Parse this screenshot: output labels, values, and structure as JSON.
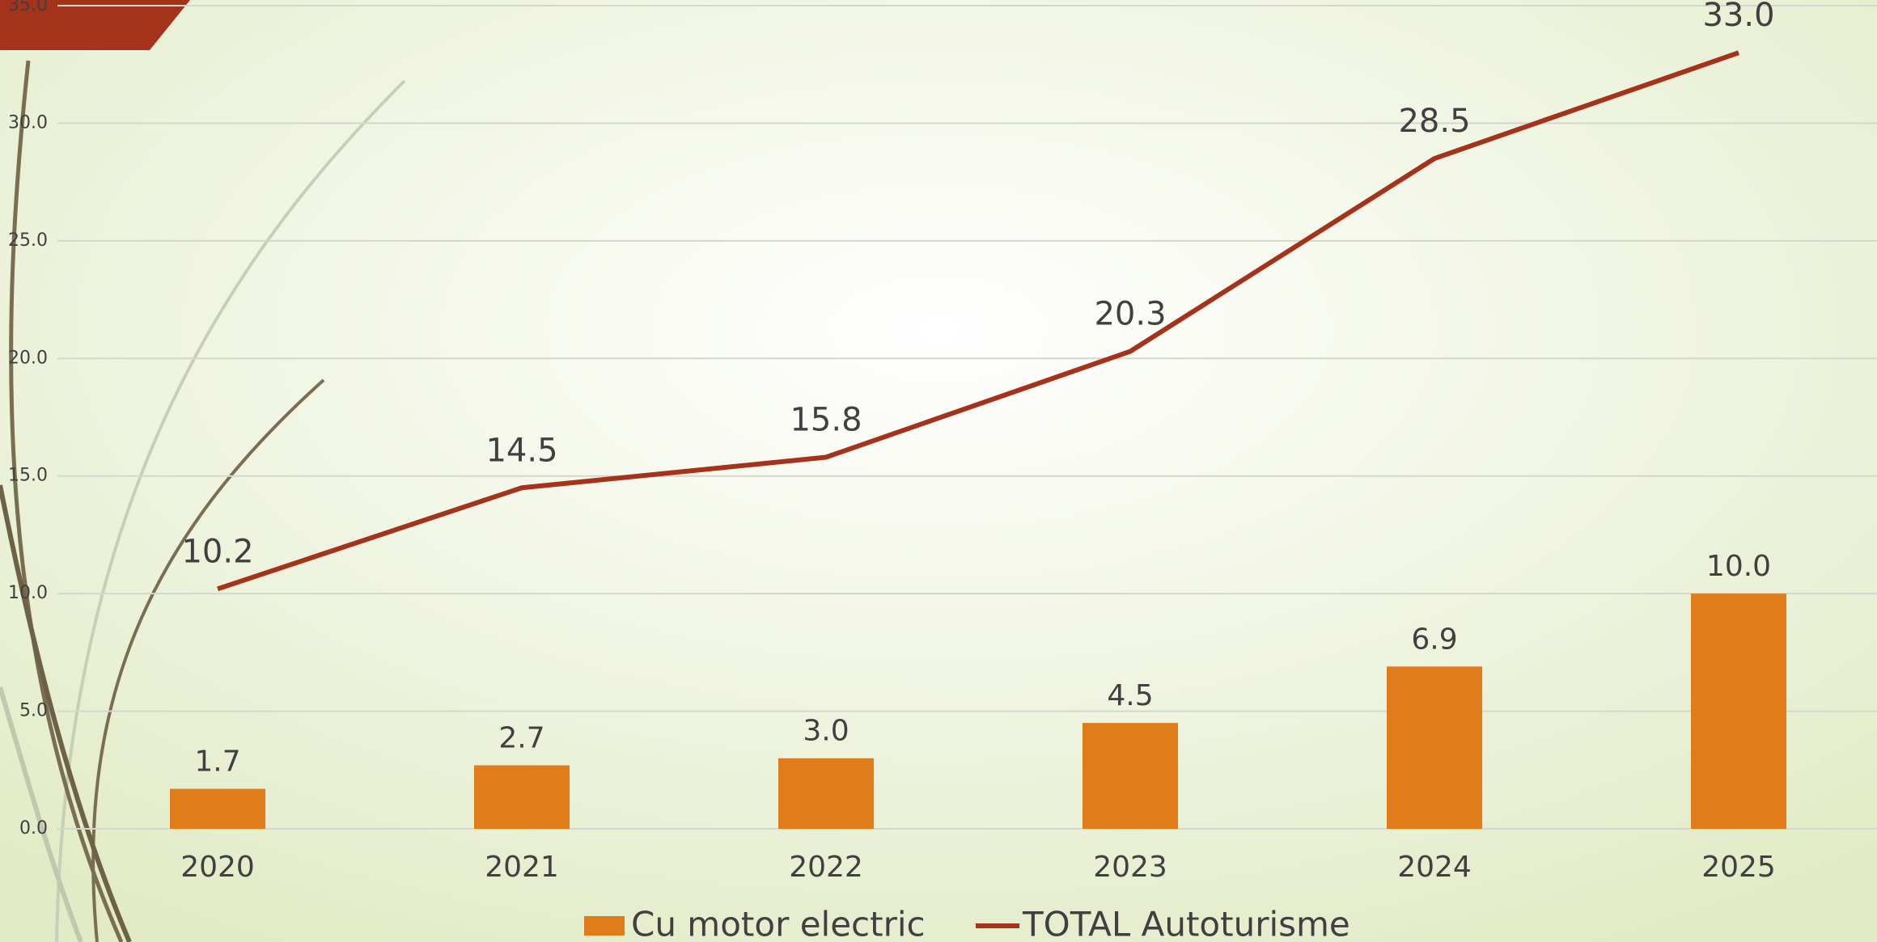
{
  "chart_data": {
    "type": "combo",
    "categories": [
      "2020",
      "2021",
      "2022",
      "2023",
      "2024",
      "2025"
    ],
    "series": [
      {
        "name": "Cu motor electric",
        "type": "bar",
        "color": "#e07c1a",
        "values": [
          1.7,
          2.7,
          3.0,
          4.5,
          6.9,
          10.0
        ],
        "value_labels": [
          "1.7",
          "2.7",
          "3.0",
          "4.5",
          "6.9",
          "10.0"
        ]
      },
      {
        "name": "TOTAL Autoturisme",
        "type": "line",
        "color": "#a5321a",
        "values": [
          10.2,
          14.5,
          15.8,
          20.3,
          28.5,
          33.0
        ],
        "value_labels": [
          "10.2",
          "14.5",
          "15.8",
          "20.3",
          "28.5",
          "33.0"
        ]
      }
    ],
    "ylim": [
      0,
      35
    ],
    "yticks": [
      {
        "value": 0,
        "label": "0.0"
      },
      {
        "value": 5,
        "label": "5.0"
      },
      {
        "value": 10,
        "label": "10.0"
      },
      {
        "value": 15,
        "label": "15.0"
      },
      {
        "value": 20,
        "label": "20.0"
      },
      {
        "value": 25,
        "label": "25.0"
      },
      {
        "value": 30,
        "label": "30.0"
      },
      {
        "value": 35,
        "label": "35.0"
      }
    ],
    "grid": true,
    "legend": "bottom"
  }
}
